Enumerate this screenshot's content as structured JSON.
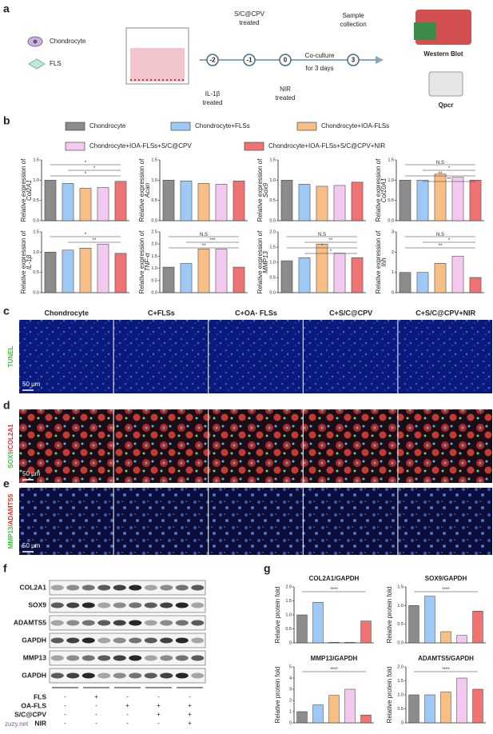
{
  "panel_letters": [
    "a",
    "b",
    "c",
    "d",
    "e",
    "f",
    "g"
  ],
  "panel_a": {
    "cell_labels": [
      "Chondrocyte",
      "FLS"
    ],
    "timeline_points": [
      "-2",
      "-1",
      "0",
      "3"
    ],
    "above": [
      [
        "S/C@CPV",
        "treated"
      ],
      [
        "Sample",
        "collection"
      ]
    ],
    "below": [
      [
        "IL-1β",
        "treated"
      ],
      [
        "NIR",
        "treated"
      ]
    ],
    "coculture": [
      "Co-culture",
      "for 3 days"
    ],
    "outputs": [
      "Western Blot",
      "Qpcr"
    ]
  },
  "panel_b": {
    "series": [
      {
        "name": "Chondrocyte",
        "color": "#8c8c8c"
      },
      {
        "name": "Chondrocyte+FLSs",
        "color": "#9ec9f5"
      },
      {
        "name": "Chondrocyte+IOA-FLSs",
        "color": "#f7be85"
      },
      {
        "name": "Chondrocyte+IOA-FLSs+S/C@CPV",
        "color": "#f3c9f0"
      },
      {
        "name": "Chondrocyte+IOA-FLSs+S/C@CPV+NIR",
        "color": "#f07373"
      }
    ],
    "charts": [
      {
        "type": "bar",
        "ylabel": "Relative expression of",
        "gene": "Col2A1",
        "values": [
          1.0,
          0.92,
          0.8,
          0.82,
          0.97
        ],
        "ylim": [
          0,
          1.5
        ],
        "yticks": [
          {
            "value": 0,
            "label": "0.0"
          },
          0.5,
          {
            "value": 1,
            "label": "1.0"
          },
          1.5
        ],
        "annotations": [
          "*",
          "*",
          "*"
        ]
      },
      {
        "type": "bar",
        "ylabel": "Relative expression of",
        "gene": "Acan",
        "values": [
          1.0,
          0.98,
          0.92,
          0.9,
          0.98
        ],
        "ylim": [
          0,
          1.5
        ],
        "yticks": [
          {
            "value": 0,
            "label": "0.0"
          },
          0.5,
          {
            "value": 1,
            "label": "1.0"
          },
          1.5
        ]
      },
      {
        "type": "bar",
        "ylabel": "Relative expression of",
        "gene": "Sox9",
        "values": [
          1.0,
          0.9,
          0.85,
          0.87,
          0.95
        ],
        "ylim": [
          0,
          1.5
        ],
        "yticks": [
          {
            "value": 0,
            "label": "0.0"
          },
          0.5,
          {
            "value": 1,
            "label": "1.0"
          },
          1.5
        ]
      },
      {
        "type": "bar",
        "ylabel": "Relative expression of",
        "gene": "Col10A1",
        "values": [
          1.0,
          1.0,
          1.15,
          1.07,
          1.0
        ],
        "ylim": [
          0,
          1.5
        ],
        "yticks": [
          {
            "value": 0,
            "label": "0.0"
          },
          0.5,
          {
            "value": 1,
            "label": "1.0"
          },
          1.5
        ],
        "annotations": [
          "N.S",
          "*",
          "**",
          "**"
        ]
      },
      {
        "type": "bar",
        "ylabel": "Relative expression of",
        "gene": "IL-1β",
        "values": [
          1.0,
          1.05,
          1.1,
          1.2,
          0.97
        ],
        "ylim": [
          0,
          1.5
        ],
        "yticks": [
          {
            "value": 0,
            "label": "0.0"
          },
          0.5,
          {
            "value": 1,
            "label": "1.0"
          },
          1.5
        ],
        "annotations": [
          "*",
          "**"
        ]
      },
      {
        "type": "bar",
        "ylabel": "Relative expression of",
        "gene": "TNF-α",
        "values": [
          1.05,
          1.2,
          1.8,
          1.8,
          1.05
        ],
        "ylim": [
          0,
          2.5
        ],
        "yticks": [
          {
            "value": 0,
            "label": "0.0"
          },
          0.5,
          {
            "value": 1,
            "label": "1.0"
          },
          1.5,
          {
            "value": 2,
            "label": "2.0"
          },
          2.5
        ],
        "annotations": [
          "N.S",
          "***",
          "**"
        ]
      },
      {
        "type": "bar",
        "ylabel": "Relative expression of",
        "gene": "MMP13",
        "values": [
          1.05,
          1.15,
          1.6,
          1.3,
          1.15
        ],
        "ylim": [
          0,
          2
        ],
        "yticks": [
          {
            "value": 0,
            "label": "0.0"
          },
          0.5,
          {
            "value": 1,
            "label": "1.0"
          },
          1.5,
          {
            "value": 2,
            "label": "2.0"
          }
        ],
        "annotations": [
          "N.S",
          "**",
          "*",
          "*"
        ]
      },
      {
        "type": "bar",
        "ylabel": "Relative expression of",
        "gene": "Ihh",
        "values": [
          1.0,
          1.0,
          1.45,
          1.8,
          0.75
        ],
        "ylim": [
          0,
          3
        ],
        "yticks": [
          0,
          1,
          2,
          3
        ],
        "annotations": [
          "N.S",
          "*",
          "**"
        ]
      }
    ]
  },
  "panel_images": {
    "columns": [
      "Chondrocyte",
      "C+FLSs",
      "C+OA- FLSs",
      "C+S/C@CPV",
      "C+S/C@CPV+NIR"
    ],
    "rows": [
      {
        "label_green": "TUNEL",
        "scale": "50 μm"
      },
      {
        "label_green": "SOX9",
        "label_red": "/COL2A1",
        "scale": "50 μm"
      },
      {
        "label_green": "MMP13",
        "label_red": "/ADAMTS5",
        "scale": "50 μm"
      }
    ]
  },
  "panel_f": {
    "blots": [
      "COL2A1",
      "SOX9",
      "ADAMTS5",
      "GAPDH",
      "MMP13",
      "GAPDH"
    ],
    "conditions": [
      {
        "label": "FLS",
        "signs": [
          "-",
          "+",
          "-",
          "-",
          "-"
        ]
      },
      {
        "label": "OA-FLS",
        "signs": [
          "-",
          "-",
          "+",
          "+",
          "+"
        ]
      },
      {
        "label": "S/C@CPV",
        "signs": [
          "-",
          "-",
          "-",
          "+",
          "+"
        ]
      },
      {
        "label": "NIR",
        "signs": [
          "-",
          "-",
          "-",
          "-",
          "+"
        ]
      }
    ]
  },
  "panel_g": {
    "ylabel": "Relative protein fold",
    "charts": [
      {
        "type": "bar",
        "title": "COL2A1/GAPDH",
        "values": [
          1.0,
          1.45,
          0.02,
          0.02,
          0.78
        ],
        "ylim": [
          0,
          2
        ],
        "yticks": [
          0,
          0.5,
          {
            "value": 1,
            "label": "1.0"
          },
          1.5,
          {
            "value": 2,
            "label": "2.0"
          }
        ],
        "annotations": [
          "****"
        ]
      },
      {
        "type": "bar",
        "title": "SOX9/GAPDH",
        "values": [
          1.0,
          1.25,
          0.3,
          0.2,
          0.85
        ],
        "ylim": [
          0,
          1.5
        ],
        "yticks": [
          {
            "value": 0,
            "label": "0.0"
          },
          0.5,
          {
            "value": 1,
            "label": "1.0"
          },
          1.5
        ],
        "annotations": [
          "****"
        ]
      },
      {
        "type": "bar",
        "title": "MMP13/GAPDH",
        "values": [
          1.0,
          1.6,
          2.45,
          3.0,
          0.7
        ],
        "ylim": [
          0,
          5
        ],
        "yticks": [
          0,
          1,
          2,
          3,
          4,
          5
        ],
        "annotations": [
          "****"
        ]
      },
      {
        "type": "bar",
        "title": "ADAMTS5/GAPDH",
        "values": [
          1.0,
          1.0,
          1.1,
          1.6,
          1.2
        ],
        "ylim": [
          0,
          2
        ],
        "yticks": [
          0,
          0.5,
          {
            "value": 1,
            "label": "1.0"
          },
          1.5,
          {
            "value": 2,
            "label": "2.0"
          }
        ],
        "annotations": [
          "****"
        ]
      }
    ]
  },
  "watermark": "zuzy.net"
}
